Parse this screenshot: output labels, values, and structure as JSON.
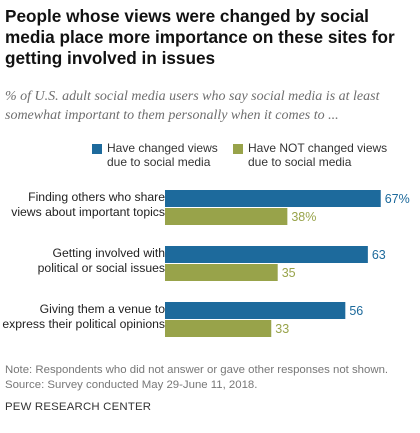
{
  "title": "People whose views were changed by social media place more importance on these sites for getting involved in issues",
  "subtitle": "% of U.S. adult social media users who say social media is at least somewhat important to them personally when it comes to ...",
  "note": "Note: Respondents who did not answer or gave other responses not shown.",
  "source": "Source: Survey conducted May 29-June 11, 2018.",
  "brand": "PEW RESEARCH CENTER",
  "colors": {
    "changed": "#1d6a9c",
    "not_changed": "#98a34a"
  },
  "chart_data": {
    "type": "bar",
    "orientation": "horizontal",
    "categories": [
      "Finding others who share views about important topics",
      "Getting involved with political or social issues",
      "Giving them a venue to express their political opinions"
    ],
    "category_lines": [
      [
        "Finding others who share",
        "views about important topics"
      ],
      [
        "Getting involved with",
        "political or social issues"
      ],
      [
        "Giving them a venue to",
        "express their political opinions"
      ]
    ],
    "series": [
      {
        "name": "Have changed views due to social media",
        "legend_lines": [
          "Have changed views",
          "due to social media"
        ],
        "values": [
          67,
          63,
          56
        ],
        "labels": [
          "67%",
          "63",
          "56"
        ]
      },
      {
        "name": "Have NOT changed views due to social media",
        "legend_lines": [
          "Have NOT changed views",
          "due to social media"
        ],
        "values": [
          38,
          35,
          33
        ],
        "labels": [
          "38%",
          "35",
          "33"
        ]
      }
    ],
    "xlim": [
      0,
      100
    ],
    "grid": false,
    "legend": "top"
  }
}
